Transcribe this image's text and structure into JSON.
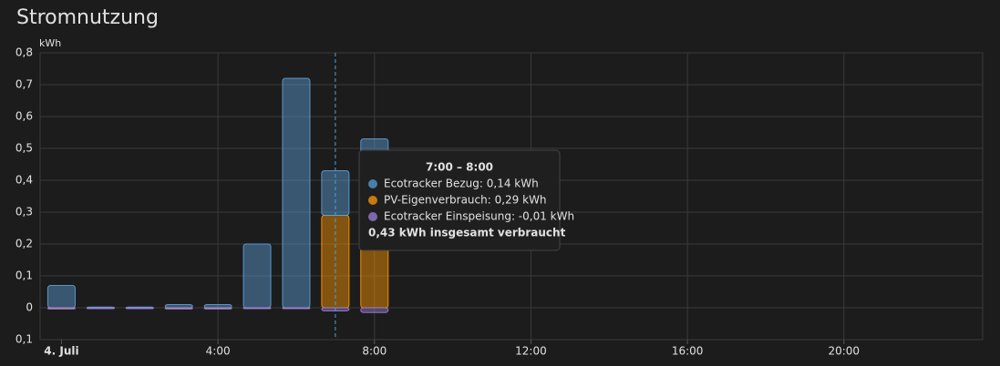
{
  "title": "Stromnutzung",
  "chart_data": {
    "type": "stacked-bar",
    "y_unit": "kWh",
    "x": [
      0,
      1,
      2,
      3,
      4,
      5,
      6,
      7,
      8
    ],
    "series": [
      {
        "color": "#ff9800",
        "values": [
          0,
          0,
          0,
          0,
          0,
          0,
          0,
          0.29,
          0.22
        ]
      },
      {
        "color": "#5ea0d8",
        "values": [
          0.07,
          0.002,
          0.002,
          0.01,
          0.01,
          0.2,
          0.72,
          0.14,
          0.31
        ]
      },
      {
        "color": "#9b7fd4",
        "values": [
          -0.004,
          -0.003,
          -0.003,
          -0.004,
          -0.004,
          -0.003,
          -0.003,
          -0.01,
          -0.015
        ]
      }
    ],
    "xlim": [
      -0.5,
      23.5
    ],
    "xticks": [
      {
        "value": 0,
        "label": "4. Juli"
      },
      {
        "value": 4,
        "label": "4:00"
      },
      {
        "value": 8,
        "label": "8:00"
      },
      {
        "value": 12,
        "label": "12:00"
      },
      {
        "value": 16,
        "label": "16:00"
      },
      {
        "value": 20,
        "label": "20:00"
      }
    ],
    "ylim": [
      -0.1,
      0.8
    ],
    "yticks": [
      {
        "value": -0.1,
        "label": "0,1"
      },
      {
        "value": 0,
        "label": "0"
      },
      {
        "value": 0.1,
        "label": "0,1"
      },
      {
        "value": 0.2,
        "label": "0,2"
      },
      {
        "value": 0.3,
        "label": "0,3"
      },
      {
        "value": 0.4,
        "label": "0,4"
      },
      {
        "value": 0.5,
        "label": "0,5"
      },
      {
        "value": 0.6,
        "label": "0,6"
      },
      {
        "value": 0.7,
        "label": "0,7"
      },
      {
        "value": 0.8,
        "label": "0,8"
      }
    ],
    "grid": true,
    "tooltip": {
      "x": 7,
      "title": "7:00 – 8:00",
      "rows": [
        {
          "color": "#4a7fa8",
          "text": "Ecotracker Bezug: 0,14 kWh"
        },
        {
          "color": "#c97a0c",
          "text": "PV-Eigenverbrauch: 0,29 kWh"
        },
        {
          "color": "#7d68ad",
          "text": "Ecotracker Einspeisung: -0,01 kWh"
        }
      ],
      "total": "0,43 kWh insgesamt verbraucht"
    }
  }
}
